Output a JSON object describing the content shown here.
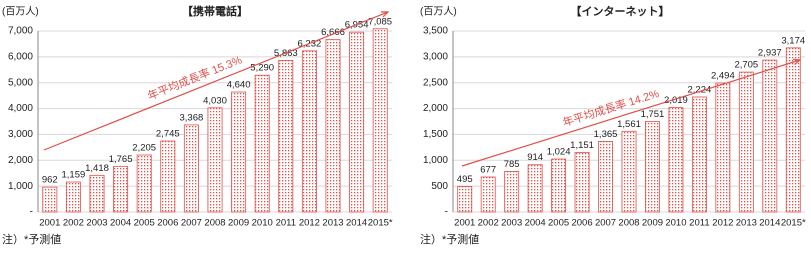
{
  "chart_data": [
    {
      "type": "bar",
      "title": "【携帯電話】",
      "y_unit": "(百万人)",
      "annotation": "年平均成長率 15.3%",
      "note": "注）*予測値",
      "categories": [
        "2001",
        "2002",
        "2003",
        "2004",
        "2005",
        "2006",
        "2007",
        "2008",
        "2009",
        "2010",
        "2011",
        "2012",
        "2013",
        "2014",
        "2015*"
      ],
      "values": [
        962,
        1159,
        1418,
        1765,
        2205,
        2745,
        3368,
        4030,
        4640,
        5290,
        5863,
        6232,
        6666,
        6954,
        7085
      ],
      "value_labels": [
        "962",
        "1,159",
        "1,418",
        "1,765",
        "2,205",
        "2,745",
        "3,368",
        "4,030",
        "4,640",
        "5,290",
        "5,863",
        "6,232",
        "6,666",
        "6,954",
        "7,085"
      ],
      "color": "#e0504a",
      "ylim": [
        0,
        7000
      ],
      "yticks": [
        {
          "value": 0,
          "label": "-"
        },
        {
          "value": 1000,
          "label": "1,000"
        },
        {
          "value": 2000,
          "label": "2,000"
        },
        {
          "value": 3000,
          "label": "3,000"
        },
        {
          "value": 4000,
          "label": "4,000"
        },
        {
          "value": 5000,
          "label": "5,000"
        },
        {
          "value": 6000,
          "label": "6,000"
        },
        {
          "value": 7000,
          "label": "7,000"
        }
      ],
      "grid": true
    },
    {
      "type": "bar",
      "title": "【インターネット】",
      "y_unit": "(百万人)",
      "annotation": "年平均成長率 14.2%",
      "note": "注）*予測値",
      "categories": [
        "2001",
        "2002",
        "2003",
        "2004",
        "2005",
        "2006",
        "2007",
        "2008",
        "2009",
        "2010",
        "2011",
        "2012",
        "2013",
        "2014",
        "2015*"
      ],
      "values": [
        495,
        677,
        785,
        914,
        1024,
        1151,
        1365,
        1561,
        1751,
        2019,
        2224,
        2494,
        2705,
        2937,
        3174
      ],
      "value_labels": [
        "495",
        "677",
        "785",
        "914",
        "1,024",
        "1,151",
        "1,365",
        "1,561",
        "1,751",
        "2,019",
        "2,224",
        "2,494",
        "2,705",
        "2,937",
        "3,174"
      ],
      "color": "#e0504a",
      "ylim": [
        0,
        3500
      ],
      "yticks": [
        {
          "value": 0,
          "label": "-"
        },
        {
          "value": 500,
          "label": "500"
        },
        {
          "value": 1000,
          "label": "1,000"
        },
        {
          "value": 1500,
          "label": "1,500"
        },
        {
          "value": 2000,
          "label": "2,000"
        },
        {
          "value": 2500,
          "label": "2,500"
        },
        {
          "value": 3000,
          "label": "3,000"
        },
        {
          "value": 3500,
          "label": "3,500"
        }
      ],
      "grid": true
    }
  ]
}
